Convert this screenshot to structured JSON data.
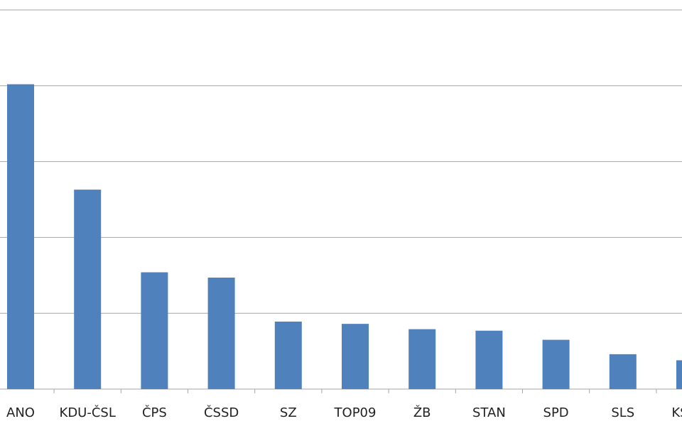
{
  "chart_data": {
    "type": "bar",
    "categories": [
      "ANO",
      "KDU-ČSL",
      "ČPS",
      "ČSSD",
      "SZ",
      "TOP09",
      "ŽB",
      "STAN",
      "SPD",
      "SLS",
      "KSČM"
    ],
    "values": [
      4.02,
      2.63,
      1.54,
      1.47,
      0.89,
      0.86,
      0.79,
      0.77,
      0.65,
      0.46,
      0.38
    ],
    "color": "#4f81bd",
    "ylim": [
      0,
      5
    ],
    "yticks": [
      0,
      1,
      2,
      3,
      4,
      5
    ],
    "grid": true
  }
}
